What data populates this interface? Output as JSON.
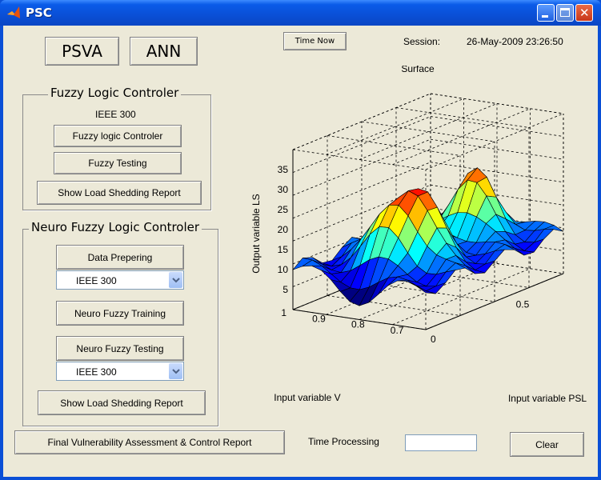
{
  "window": {
    "title": "PSC",
    "min_icon": "minimize-icon",
    "max_icon": "maximize-icon",
    "close_icon": "close-icon",
    "close_glyph": "✕"
  },
  "top_buttons": {
    "psva": "PSVA",
    "ann": "ANN"
  },
  "time_now": "Time Now",
  "session": {
    "label": "Session:",
    "value": "26-May-2009 23:26:50"
  },
  "fuzzy_group": {
    "label": "Fuzzy Logic Controler",
    "system": "IEEE 300",
    "controller_button": "Fuzzy logic Controler",
    "testing_button": "Fuzzy Testing",
    "report_button": "Show Load Shedding Report"
  },
  "neuro_group": {
    "label": "Neuro Fuzzy Logic Controler",
    "data_button": "Data Prepering",
    "select1": "IEEE 300",
    "training_button": "Neuro Fuzzy Training",
    "testing_button": "Neuro Fuzzy Testing",
    "select2": "IEEE 300",
    "report_button": "Show Load Shedding Report"
  },
  "bottom": {
    "final_report": "Final Vulnerability Assessment & Control Report",
    "time_processing": "Time Processing",
    "time_processing_value": "",
    "clear": "Clear"
  },
  "chart_data": {
    "type": "surface",
    "title": "Surface",
    "xlabel": "Input variable V",
    "ylabel": "Input variable PSL",
    "zlabel": "Output variable LS",
    "x_ticks": [
      "1",
      "0.9",
      "0.8",
      "0.7"
    ],
    "y_ticks": [
      "0",
      "0.5"
    ],
    "z_ticks": [
      "5",
      "10",
      "15",
      "20",
      "25",
      "30",
      "35"
    ],
    "ridge_peaks": [
      30,
      27
    ],
    "baseline": 10,
    "colormap": "jet"
  }
}
